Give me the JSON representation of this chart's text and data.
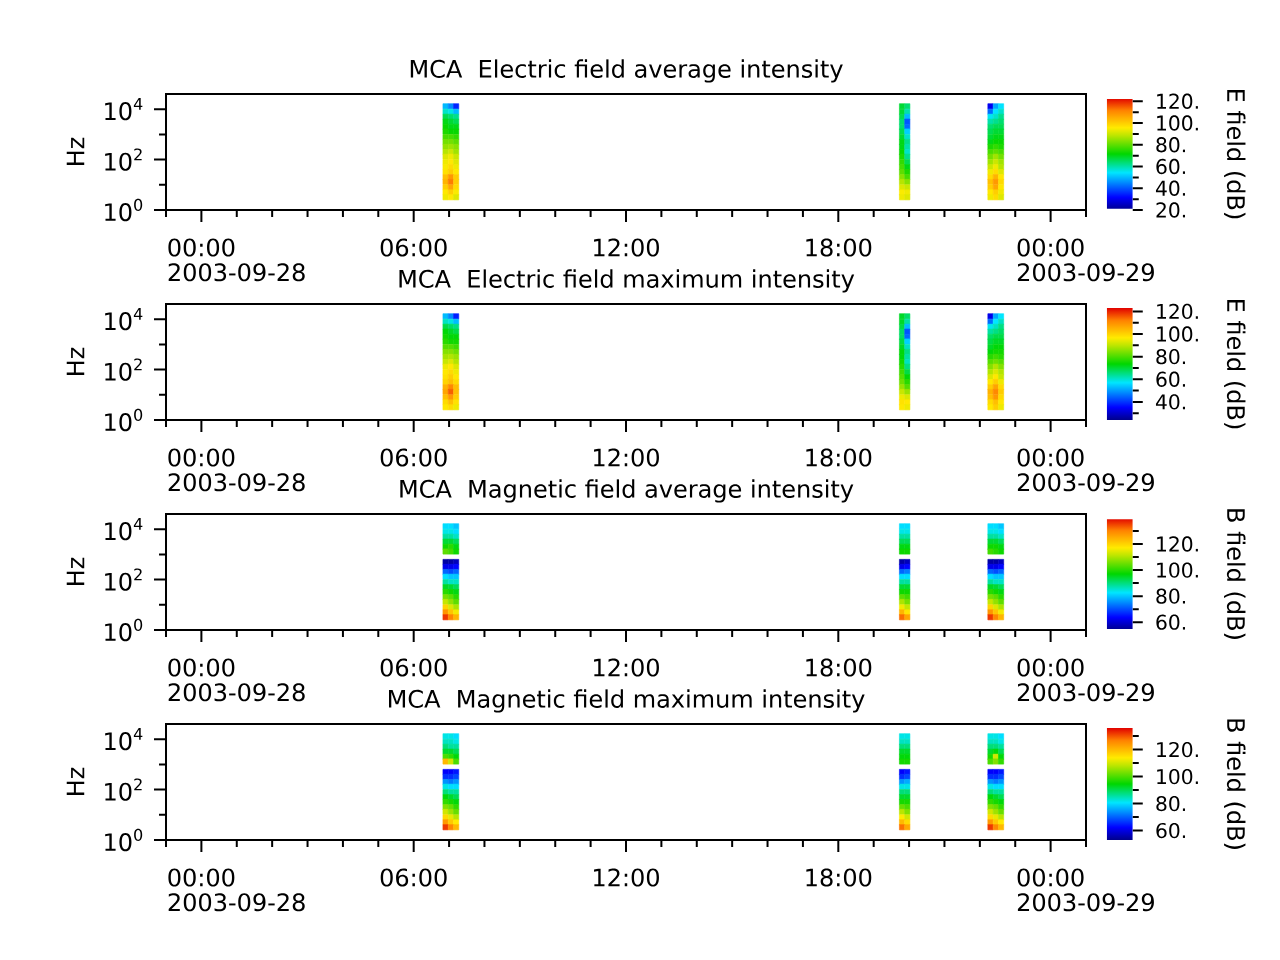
{
  "chart_data": [
    {
      "type": "scatter",
      "title": "MCA  Electric field average intensity",
      "ylabel": "Hz",
      "clabel": "E field (dB)",
      "marker": "square",
      "x": [
        6.9,
        7.05,
        7.2,
        19.8,
        19.95,
        22.3,
        22.45,
        22.6,
        6.9,
        7.05,
        7.2,
        19.8,
        19.95,
        22.3,
        22.45,
        22.6,
        6.9,
        7.05,
        7.2,
        19.8,
        19.95,
        22.3,
        22.45,
        22.6,
        6.9,
        7.05,
        7.2,
        19.8,
        19.95,
        22.3,
        22.45,
        22.6,
        6.9,
        7.05,
        7.2,
        19.8,
        19.95,
        22.3,
        22.45,
        22.6,
        6.9,
        7.05,
        7.2,
        19.8,
        19.95,
        22.3,
        22.45,
        22.6,
        6.9,
        7.05,
        7.2,
        19.8,
        19.95,
        22.3,
        22.45,
        22.6,
        6.9,
        7.05,
        7.2,
        19.8,
        19.95,
        22.3,
        22.45,
        22.6,
        6.9,
        7.05,
        7.2,
        19.8,
        19.95,
        22.3,
        22.45,
        22.6,
        6.9,
        7.05,
        7.2,
        19.8,
        19.95,
        22.3,
        22.45,
        22.6,
        6.9,
        7.05,
        7.2,
        19.8,
        19.95,
        22.3,
        22.45,
        22.6,
        6.9,
        7.05,
        7.2,
        19.8,
        19.95,
        22.3,
        22.45,
        22.6,
        6.9,
        7.05,
        7.2,
        19.8,
        19.95,
        22.3,
        22.45,
        22.6,
        6.9,
        7.05,
        7.2,
        19.8,
        19.95,
        22.3,
        22.45,
        22.6,
        6.9,
        7.05,
        7.2,
        19.8,
        19.95,
        22.3,
        22.45,
        22.6,
        6.9,
        7.05,
        7.2,
        19.8,
        19.95,
        22.3,
        22.45,
        22.6,
        6.9,
        7.05,
        7.2,
        19.8,
        19.95,
        22.3,
        22.45,
        22.6,
        6.9,
        7.05,
        7.2,
        19.8,
        19.95,
        22.3,
        22.45,
        22.6,
        6.9,
        7.05,
        7.2,
        19.8,
        19.95,
        22.3,
        22.45,
        22.6
      ],
      "values": [
        13000,
        13000,
        13000,
        13000,
        13000,
        13000,
        13000,
        13000,
        7900,
        7900,
        7900,
        7900,
        7900,
        7900,
        7900,
        7900,
        5000,
        5000,
        5000,
        5000,
        5000,
        5000,
        5000,
        5000,
        3200,
        3200,
        3200,
        3200,
        3200,
        3200,
        3200,
        3200,
        2000,
        2000,
        2000,
        2000,
        2000,
        2000,
        2000,
        2000,
        1300,
        1300,
        1300,
        1300,
        1300,
        1300,
        1300,
        1300,
        790,
        790,
        790,
        790,
        790,
        790,
        790,
        790,
        500,
        500,
        500,
        500,
        500,
        500,
        500,
        500,
        320,
        320,
        320,
        320,
        320,
        320,
        320,
        320,
        200,
        200,
        200,
        200,
        200,
        200,
        200,
        200,
        130,
        130,
        130,
        130,
        130,
        130,
        130,
        130,
        79,
        79,
        79,
        79,
        79,
        79,
        79,
        79,
        50,
        50,
        50,
        50,
        50,
        50,
        50,
        50,
        32,
        32,
        32,
        32,
        32,
        32,
        32,
        32,
        20,
        20,
        20,
        20,
        20,
        20,
        20,
        20,
        13,
        13,
        13,
        13,
        13,
        13,
        13,
        13,
        7.9,
        7.9,
        7.9,
        7.9,
        7.9,
        7.9,
        7.9,
        7.9,
        5,
        5,
        5,
        5,
        5,
        5,
        5,
        5,
        3.2,
        3.2,
        3.2,
        3.2,
        3.2,
        3.2,
        3.2,
        3.2
      ],
      "cvalues": [
        50,
        45,
        35,
        68,
        64,
        30,
        48,
        54,
        58,
        56,
        50,
        68,
        60,
        42,
        54,
        58,
        66,
        64,
        62,
        66,
        50,
        55,
        58,
        62,
        70,
        68,
        66,
        64,
        40,
        60,
        62,
        64,
        72,
        70,
        70,
        64,
        42,
        64,
        66,
        66,
        74,
        72,
        72,
        66,
        52,
        66,
        68,
        68,
        78,
        78,
        76,
        68,
        58,
        68,
        70,
        70,
        82,
        82,
        80,
        70,
        62,
        70,
        72,
        72,
        85,
        86,
        84,
        70,
        60,
        74,
        76,
        74,
        88,
        90,
        86,
        72,
        58,
        78,
        80,
        78,
        92,
        94,
        90,
        74,
        62,
        82,
        86,
        82,
        94,
        96,
        92,
        76,
        66,
        86,
        90,
        86,
        95,
        98,
        94,
        78,
        70,
        90,
        94,
        88,
        97,
        100,
        96,
        80,
        74,
        94,
        98,
        92,
        102,
        108,
        100,
        84,
        78,
        98,
        104,
        96,
        104,
        112,
        100,
        88,
        84,
        102,
        108,
        98,
        100,
        106,
        98,
        92,
        90,
        100,
        106,
        96,
        96,
        100,
        95,
        95,
        94,
        96,
        100,
        94,
        94,
        96,
        92,
        94,
        92,
        94,
        98,
        92
      ],
      "clim": [
        20,
        123
      ],
      "cticks": [
        {
          "value": 20,
          "label": "20."
        },
        {
          "value": 30,
          "label": null
        },
        {
          "value": 40,
          "label": "40."
        },
        {
          "value": 50,
          "label": null
        },
        {
          "value": 60,
          "label": "60."
        },
        {
          "value": 70,
          "label": null
        },
        {
          "value": 80,
          "label": "80."
        },
        {
          "value": 90,
          "label": null
        },
        {
          "value": 100,
          "label": "100."
        },
        {
          "value": 110,
          "label": null
        },
        {
          "value": 120,
          "label": "120."
        }
      ],
      "xlim": [
        -1,
        25
      ],
      "xticks": [
        {
          "value": -1,
          "label": null
        },
        {
          "value": 0,
          "label": "00:00"
        },
        {
          "value": 1,
          "label": null
        },
        {
          "value": 2,
          "label": null
        },
        {
          "value": 3,
          "label": null
        },
        {
          "value": 4,
          "label": null
        },
        {
          "value": 5,
          "label": null
        },
        {
          "value": 6,
          "label": "06:00"
        },
        {
          "value": 7,
          "label": null
        },
        {
          "value": 8,
          "label": null
        },
        {
          "value": 9,
          "label": null
        },
        {
          "value": 10,
          "label": null
        },
        {
          "value": 11,
          "label": null
        },
        {
          "value": 12,
          "label": "12:00"
        },
        {
          "value": 13,
          "label": null
        },
        {
          "value": 14,
          "label": null
        },
        {
          "value": 15,
          "label": null
        },
        {
          "value": 16,
          "label": null
        },
        {
          "value": 17,
          "label": null
        },
        {
          "value": 18,
          "label": "18:00"
        },
        {
          "value": 19,
          "label": null
        },
        {
          "value": 20,
          "label": null
        },
        {
          "value": 21,
          "label": null
        },
        {
          "value": 22,
          "label": null
        },
        {
          "value": 23,
          "label": null
        },
        {
          "value": 24,
          "label": "00:00"
        },
        {
          "value": 25,
          "label": null
        }
      ],
      "ylim": [
        1,
        40000
      ],
      "yticks": [
        {
          "value": 1,
          "label": "10$^{0}$"
        },
        {
          "value": 10,
          "label": null
        },
        {
          "value": 100,
          "label": "10$^{2}$"
        },
        {
          "value": 1000,
          "label": null
        },
        {
          "value": 10000,
          "label": "10$^{4}$"
        }
      ],
      "log": "y",
      "annotations": [
        "2003-09-28",
        "2003-09-29"
      ]
    },
    {
      "type": "scatter",
      "title": "MCA  Electric field maximum intensity",
      "ylabel": "Hz",
      "clabel": "E field (dB)",
      "marker": "square",
      "x": [
        6.9,
        7.05,
        7.2,
        19.8,
        19.95,
        22.3,
        22.45,
        22.6,
        6.9,
        7.05,
        7.2,
        19.8,
        19.95,
        22.3,
        22.45,
        22.6,
        6.9,
        7.05,
        7.2,
        19.8,
        19.95,
        22.3,
        22.45,
        22.6,
        6.9,
        7.05,
        7.2,
        19.8,
        19.95,
        22.3,
        22.45,
        22.6,
        6.9,
        7.05,
        7.2,
        19.8,
        19.95,
        22.3,
        22.45,
        22.6,
        6.9,
        7.05,
        7.2,
        19.8,
        19.95,
        22.3,
        22.45,
        22.6,
        6.9,
        7.05,
        7.2,
        19.8,
        19.95,
        22.3,
        22.45,
        22.6,
        6.9,
        7.05,
        7.2,
        19.8,
        19.95,
        22.3,
        22.45,
        22.6,
        6.9,
        7.05,
        7.2,
        19.8,
        19.95,
        22.3,
        22.45,
        22.6,
        6.9,
        7.05,
        7.2,
        19.8,
        19.95,
        22.3,
        22.45,
        22.6,
        6.9,
        7.05,
        7.2,
        19.8,
        19.95,
        22.3,
        22.45,
        22.6,
        6.9,
        7.05,
        7.2,
        19.8,
        19.95,
        22.3,
        22.45,
        22.6,
        6.9,
        7.05,
        7.2,
        19.8,
        19.95,
        22.3,
        22.45,
        22.6,
        6.9,
        7.05,
        7.2,
        19.8,
        19.95,
        22.3,
        22.45,
        22.6,
        6.9,
        7.05,
        7.2,
        19.8,
        19.95,
        22.3,
        22.45,
        22.6,
        6.9,
        7.05,
        7.2,
        19.8,
        19.95,
        22.3,
        22.45,
        22.6,
        6.9,
        7.05,
        7.2,
        19.8,
        19.95,
        22.3,
        22.45,
        22.6,
        6.9,
        7.05,
        7.2,
        19.8,
        19.95,
        22.3,
        22.45,
        22.6,
        6.9,
        7.05,
        7.2,
        19.8,
        19.95,
        22.3,
        22.45,
        22.6
      ],
      "values": [
        13000,
        13000,
        13000,
        13000,
        13000,
        13000,
        13000,
        13000,
        7900,
        7900,
        7900,
        7900,
        7900,
        7900,
        7900,
        7900,
        5000,
        5000,
        5000,
        5000,
        5000,
        5000,
        5000,
        5000,
        3200,
        3200,
        3200,
        3200,
        3200,
        3200,
        3200,
        3200,
        2000,
        2000,
        2000,
        2000,
        2000,
        2000,
        2000,
        2000,
        1300,
        1300,
        1300,
        1300,
        1300,
        1300,
        1300,
        1300,
        790,
        790,
        790,
        790,
        790,
        790,
        790,
        790,
        500,
        500,
        500,
        500,
        500,
        500,
        500,
        500,
        320,
        320,
        320,
        320,
        320,
        320,
        320,
        320,
        200,
        200,
        200,
        200,
        200,
        200,
        200,
        200,
        130,
        130,
        130,
        130,
        130,
        130,
        130,
        130,
        79,
        79,
        79,
        79,
        79,
        79,
        79,
        79,
        50,
        50,
        50,
        50,
        50,
        50,
        50,
        50,
        32,
        32,
        32,
        32,
        32,
        32,
        32,
        32,
        20,
        20,
        20,
        20,
        20,
        20,
        20,
        20,
        13,
        13,
        13,
        13,
        13,
        13,
        13,
        13,
        7.9,
        7.9,
        7.9,
        7.9,
        7.9,
        7.9,
        7.9,
        7.9,
        5,
        5,
        5,
        5,
        5,
        5,
        5,
        5,
        3.2,
        3.2,
        3.2,
        3.2,
        3.2,
        3.2,
        3.2,
        3.2
      ],
      "cvalues": [
        53,
        48,
        38,
        71,
        67,
        33,
        51,
        57,
        61,
        59,
        53,
        71,
        63,
        45,
        57,
        61,
        69,
        67,
        65,
        69,
        53,
        58,
        61,
        65,
        73,
        71,
        69,
        67,
        43,
        63,
        65,
        67,
        75,
        73,
        73,
        67,
        45,
        67,
        69,
        69,
        77,
        75,
        75,
        69,
        55,
        69,
        71,
        71,
        81,
        81,
        79,
        71,
        61,
        71,
        73,
        73,
        85,
        85,
        83,
        73,
        65,
        73,
        75,
        75,
        88,
        89,
        87,
        73,
        63,
        77,
        79,
        77,
        91,
        93,
        89,
        75,
        61,
        81,
        83,
        81,
        95,
        97,
        93,
        77,
        65,
        85,
        89,
        85,
        97,
        99,
        95,
        79,
        69,
        89,
        93,
        89,
        98,
        101,
        97,
        81,
        73,
        93,
        97,
        91,
        100,
        103,
        99,
        83,
        77,
        97,
        101,
        95,
        105,
        111,
        103,
        87,
        81,
        101,
        107,
        99,
        107,
        115,
        103,
        91,
        87,
        105,
        111,
        101,
        103,
        109,
        101,
        95,
        93,
        103,
        109,
        99,
        99,
        103,
        98,
        98,
        97,
        99,
        103,
        97,
        97,
        99,
        95,
        97,
        95,
        97,
        101,
        95
      ],
      "clim": [
        24,
        123
      ],
      "cticks": [
        {
          "value": 30,
          "label": null
        },
        {
          "value": 40,
          "label": "40."
        },
        {
          "value": 50,
          "label": null
        },
        {
          "value": 60,
          "label": "60."
        },
        {
          "value": 70,
          "label": null
        },
        {
          "value": 80,
          "label": "80."
        },
        {
          "value": 90,
          "label": null
        },
        {
          "value": 100,
          "label": "100."
        },
        {
          "value": 110,
          "label": null
        },
        {
          "value": 120,
          "label": "120."
        }
      ],
      "xlim": [
        -1,
        25
      ],
      "xticks": [
        {
          "value": -1,
          "label": null
        },
        {
          "value": 0,
          "label": "00:00"
        },
        {
          "value": 1,
          "label": null
        },
        {
          "value": 2,
          "label": null
        },
        {
          "value": 3,
          "label": null
        },
        {
          "value": 4,
          "label": null
        },
        {
          "value": 5,
          "label": null
        },
        {
          "value": 6,
          "label": "06:00"
        },
        {
          "value": 7,
          "label": null
        },
        {
          "value": 8,
          "label": null
        },
        {
          "value": 9,
          "label": null
        },
        {
          "value": 10,
          "label": null
        },
        {
          "value": 11,
          "label": null
        },
        {
          "value": 12,
          "label": "12:00"
        },
        {
          "value": 13,
          "label": null
        },
        {
          "value": 14,
          "label": null
        },
        {
          "value": 15,
          "label": null
        },
        {
          "value": 16,
          "label": null
        },
        {
          "value": 17,
          "label": null
        },
        {
          "value": 18,
          "label": "18:00"
        },
        {
          "value": 19,
          "label": null
        },
        {
          "value": 20,
          "label": null
        },
        {
          "value": 21,
          "label": null
        },
        {
          "value": 22,
          "label": null
        },
        {
          "value": 23,
          "label": null
        },
        {
          "value": 24,
          "label": "00:00"
        },
        {
          "value": 25,
          "label": null
        }
      ],
      "ylim": [
        1,
        40000
      ],
      "yticks": [
        {
          "value": 1,
          "label": "10$^{0}$"
        },
        {
          "value": 10,
          "label": null
        },
        {
          "value": 100,
          "label": "10$^{2}$"
        },
        {
          "value": 1000,
          "label": null
        },
        {
          "value": 10000,
          "label": "10$^{4}$"
        }
      ],
      "log": "y",
      "annotations": [
        "2003-09-28",
        "2003-09-29"
      ]
    },
    {
      "type": "scatter",
      "title": "MCA  Magnetic field average intensity",
      "ylabel": "Hz",
      "clabel": "B field (dB)",
      "marker": "square",
      "x": [
        6.9,
        7.05,
        7.2,
        19.8,
        19.95,
        22.3,
        22.45,
        22.6,
        6.9,
        7.05,
        7.2,
        19.8,
        19.95,
        22.3,
        22.45,
        22.6,
        6.9,
        7.05,
        7.2,
        19.8,
        19.95,
        22.3,
        22.45,
        22.6,
        6.9,
        7.05,
        7.2,
        19.8,
        19.95,
        22.3,
        22.45,
        22.6,
        6.9,
        7.05,
        7.2,
        19.8,
        19.95,
        22.3,
        22.45,
        22.6,
        6.9,
        7.05,
        7.2,
        19.8,
        19.95,
        22.3,
        22.45,
        22.6,
        6.9,
        7.05,
        7.2,
        19.8,
        19.95,
        22.3,
        22.45,
        22.6,
        6.9,
        7.05,
        7.2,
        19.8,
        19.95,
        22.3,
        22.45,
        22.6,
        6.9,
        7.05,
        7.2,
        19.8,
        19.95,
        22.3,
        22.45,
        22.6,
        6.9,
        7.05,
        7.2,
        19.8,
        19.95,
        22.3,
        22.45,
        22.6,
        6.9,
        7.05,
        7.2,
        19.8,
        19.95,
        22.3,
        22.45,
        22.6,
        6.9,
        7.05,
        7.2,
        19.8,
        19.95,
        22.3,
        22.45,
        22.6,
        6.9,
        7.05,
        7.2,
        19.8,
        19.95,
        22.3,
        22.45,
        22.6,
        6.9,
        7.05,
        7.2,
        19.8,
        19.95,
        22.3,
        22.45,
        22.6,
        6.9,
        7.05,
        7.2,
        19.8,
        19.95,
        22.3,
        22.45,
        22.6,
        6.9,
        7.05,
        7.2,
        19.8,
        19.95,
        22.3,
        22.45,
        22.6,
        6.9,
        7.05,
        7.2,
        19.8,
        19.95,
        22.3,
        22.45,
        22.6,
        6.9,
        7.05,
        7.2,
        19.8,
        19.95,
        22.3,
        22.45,
        22.6
      ],
      "values": [
        13000,
        13000,
        13000,
        13000,
        13000,
        13000,
        13000,
        13000,
        7900,
        7900,
        7900,
        7900,
        7900,
        7900,
        7900,
        7900,
        5000,
        5000,
        5000,
        5000,
        5000,
        5000,
        5000,
        5000,
        3200,
        3200,
        3200,
        3200,
        3200,
        3200,
        3200,
        3200,
        2000,
        2000,
        2000,
        2000,
        2000,
        2000,
        2000,
        2000,
        1300,
        1300,
        1300,
        1300,
        1300,
        1300,
        1300,
        1300,
        500,
        500,
        500,
        500,
        500,
        500,
        500,
        500,
        320,
        320,
        320,
        320,
        320,
        320,
        320,
        320,
        200,
        200,
        200,
        200,
        200,
        200,
        200,
        200,
        130,
        130,
        130,
        130,
        130,
        130,
        130,
        130,
        79,
        79,
        79,
        79,
        79,
        79,
        79,
        79,
        50,
        50,
        50,
        50,
        50,
        50,
        50,
        50,
        32,
        32,
        32,
        32,
        32,
        32,
        32,
        32,
        20,
        20,
        20,
        20,
        20,
        20,
        20,
        20,
        13,
        13,
        13,
        13,
        13,
        13,
        13,
        13,
        7.9,
        7.9,
        7.9,
        7.9,
        7.9,
        7.9,
        7.9,
        7.9,
        5,
        5,
        5,
        5,
        5,
        5,
        5,
        5,
        3.2,
        3.2,
        3.2,
        3.2,
        3.2,
        3.2,
        3.2,
        3.2
      ],
      "cvalues": [
        82,
        82,
        80,
        82,
        82,
        82,
        82,
        80,
        84,
        84,
        82,
        84,
        84,
        84,
        84,
        82,
        88,
        88,
        86,
        88,
        88,
        88,
        88,
        86,
        94,
        94,
        92,
        92,
        92,
        94,
        94,
        92,
        98,
        100,
        96,
        96,
        96,
        98,
        98,
        96,
        104,
        102,
        98,
        98,
        98,
        102,
        100,
        98,
        56,
        56,
        58,
        56,
        58,
        56,
        56,
        58,
        62,
        62,
        64,
        62,
        64,
        62,
        62,
        64,
        72,
        70,
        72,
        72,
        74,
        72,
        70,
        72,
        82,
        80,
        80,
        82,
        82,
        82,
        80,
        80,
        88,
        86,
        86,
        88,
        88,
        88,
        86,
        86,
        95,
        94,
        92,
        94,
        94,
        95,
        94,
        92,
        100,
        98,
        96,
        98,
        98,
        100,
        98,
        96,
        106,
        104,
        100,
        104,
        102,
        106,
        104,
        100,
        112,
        108,
        104,
        110,
        106,
        112,
        108,
        104,
        120,
        114,
        110,
        116,
        112,
        120,
        114,
        110,
        128,
        122,
        116,
        124,
        118,
        128,
        122,
        116,
        136,
        130,
        124,
        132,
        126,
        136,
        130,
        124
      ],
      "clim": [
        54,
        140
      ],
      "cticks": [
        {
          "value": 60,
          "label": "60."
        },
        {
          "value": 70,
          "label": null
        },
        {
          "value": 80,
          "label": "80."
        },
        {
          "value": 90,
          "label": null
        },
        {
          "value": 100,
          "label": "100."
        },
        {
          "value": 110,
          "label": null
        },
        {
          "value": 120,
          "label": "120."
        },
        {
          "value": 130,
          "label": null
        }
      ],
      "xlim": [
        -1,
        25
      ],
      "xticks": [
        {
          "value": -1,
          "label": null
        },
        {
          "value": 0,
          "label": "00:00"
        },
        {
          "value": 1,
          "label": null
        },
        {
          "value": 2,
          "label": null
        },
        {
          "value": 3,
          "label": null
        },
        {
          "value": 4,
          "label": null
        },
        {
          "value": 5,
          "label": null
        },
        {
          "value": 6,
          "label": "06:00"
        },
        {
          "value": 7,
          "label": null
        },
        {
          "value": 8,
          "label": null
        },
        {
          "value": 9,
          "label": null
        },
        {
          "value": 10,
          "label": null
        },
        {
          "value": 11,
          "label": null
        },
        {
          "value": 12,
          "label": "12:00"
        },
        {
          "value": 13,
          "label": null
        },
        {
          "value": 14,
          "label": null
        },
        {
          "value": 15,
          "label": null
        },
        {
          "value": 16,
          "label": null
        },
        {
          "value": 17,
          "label": null
        },
        {
          "value": 18,
          "label": "18:00"
        },
        {
          "value": 19,
          "label": null
        },
        {
          "value": 20,
          "label": null
        },
        {
          "value": 21,
          "label": null
        },
        {
          "value": 22,
          "label": null
        },
        {
          "value": 23,
          "label": null
        },
        {
          "value": 24,
          "label": "00:00"
        },
        {
          "value": 25,
          "label": null
        }
      ],
      "ylim": [
        1,
        40000
      ],
      "yticks": [
        {
          "value": 1,
          "label": "10$^{0}$"
        },
        {
          "value": 10,
          "label": null
        },
        {
          "value": 100,
          "label": "10$^{2}$"
        },
        {
          "value": 1000,
          "label": null
        },
        {
          "value": 10000,
          "label": "10$^{4}$"
        }
      ],
      "log": "y",
      "annotations": [
        "2003-09-28",
        "2003-09-29"
      ]
    },
    {
      "type": "scatter",
      "title": "MCA  Magnetic field maximum intensity",
      "ylabel": "Hz",
      "clabel": "B field (dB)",
      "marker": "square",
      "x": [
        6.9,
        7.05,
        7.2,
        19.8,
        19.95,
        22.3,
        22.45,
        22.6,
        6.9,
        7.05,
        7.2,
        19.8,
        19.95,
        22.3,
        22.45,
        22.6,
        6.9,
        7.05,
        7.2,
        19.8,
        19.95,
        22.3,
        22.45,
        22.6,
        6.9,
        7.05,
        7.2,
        19.8,
        19.95,
        22.3,
        22.45,
        22.6,
        6.9,
        7.05,
        7.2,
        19.8,
        19.95,
        22.3,
        22.45,
        22.6,
        6.9,
        7.05,
        7.2,
        19.8,
        19.95,
        22.3,
        22.45,
        22.6,
        6.9,
        7.05,
        7.2,
        19.8,
        19.95,
        22.3,
        22.45,
        22.6,
        6.9,
        7.05,
        7.2,
        19.8,
        19.95,
        22.3,
        22.45,
        22.6,
        6.9,
        7.05,
        7.2,
        19.8,
        19.95,
        22.3,
        22.45,
        22.6,
        6.9,
        7.05,
        7.2,
        19.8,
        19.95,
        22.3,
        22.45,
        22.6,
        6.9,
        7.05,
        7.2,
        19.8,
        19.95,
        22.3,
        22.45,
        22.6,
        6.9,
        7.05,
        7.2,
        19.8,
        19.95,
        22.3,
        22.45,
        22.6,
        6.9,
        7.05,
        7.2,
        19.8,
        19.95,
        22.3,
        22.45,
        22.6,
        6.9,
        7.05,
        7.2,
        19.8,
        19.95,
        22.3,
        22.45,
        22.6,
        6.9,
        7.05,
        7.2,
        19.8,
        19.95,
        22.3,
        22.45,
        22.6,
        6.9,
        7.05,
        7.2,
        19.8,
        19.95,
        22.3,
        22.45,
        22.6,
        6.9,
        7.05,
        7.2,
        19.8,
        19.95,
        22.3,
        22.45,
        22.6,
        6.9,
        7.05,
        7.2,
        19.8,
        19.95,
        22.3,
        22.45,
        22.6
      ],
      "values": [
        13000,
        13000,
        13000,
        13000,
        13000,
        13000,
        13000,
        13000,
        7900,
        7900,
        7900,
        7900,
        7900,
        7900,
        7900,
        7900,
        5000,
        5000,
        5000,
        5000,
        5000,
        5000,
        5000,
        5000,
        3200,
        3200,
        3200,
        3200,
        3200,
        3200,
        3200,
        3200,
        2000,
        2000,
        2000,
        2000,
        2000,
        2000,
        2000,
        2000,
        1300,
        1300,
        1300,
        1300,
        1300,
        1300,
        1300,
        1300,
        500,
        500,
        500,
        500,
        500,
        500,
        500,
        500,
        320,
        320,
        320,
        320,
        320,
        320,
        320,
        320,
        200,
        200,
        200,
        200,
        200,
        200,
        200,
        200,
        130,
        130,
        130,
        130,
        130,
        130,
        130,
        130,
        79,
        79,
        79,
        79,
        79,
        79,
        79,
        79,
        50,
        50,
        50,
        50,
        50,
        50,
        50,
        50,
        32,
        32,
        32,
        32,
        32,
        32,
        32,
        32,
        20,
        20,
        20,
        20,
        20,
        20,
        20,
        20,
        13,
        13,
        13,
        13,
        13,
        13,
        13,
        13,
        7.9,
        7.9,
        7.9,
        7.9,
        7.9,
        7.9,
        7.9,
        7.9,
        5,
        5,
        5,
        5,
        5,
        5,
        5,
        5,
        3.2,
        3.2,
        3.2,
        3.2,
        3.2,
        3.2,
        3.2,
        3.2
      ],
      "cvalues": [
        82,
        82,
        80,
        82,
        82,
        82,
        82,
        80,
        84,
        84,
        82,
        84,
        84,
        84,
        84,
        82,
        88,
        86,
        86,
        88,
        88,
        88,
        88,
        86,
        92,
        92,
        90,
        92,
        92,
        92,
        94,
        90,
        100,
        98,
        94,
        94,
        94,
        96,
        110,
        94,
        120,
        110,
        100,
        96,
        96,
        100,
        104,
        98,
        62,
        62,
        64,
        62,
        64,
        62,
        62,
        64,
        66,
        66,
        68,
        66,
        68,
        66,
        66,
        68,
        74,
        72,
        74,
        74,
        76,
        74,
        72,
        74,
        82,
        80,
        80,
        82,
        82,
        82,
        80,
        80,
        88,
        86,
        86,
        88,
        88,
        88,
        86,
        86,
        94,
        92,
        90,
        92,
        92,
        94,
        92,
        90,
        98,
        96,
        94,
        96,
        96,
        98,
        96,
        94,
        104,
        102,
        98,
        102,
        100,
        104,
        102,
        98,
        110,
        106,
        102,
        108,
        104,
        110,
        106,
        102,
        116,
        112,
        108,
        114,
        110,
        116,
        112,
        108,
        124,
        118,
        114,
        120,
        116,
        124,
        118,
        114,
        132,
        126,
        120,
        128,
        122,
        132,
        126,
        120
      ],
      "clim": [
        53,
        136
      ],
      "cticks": [
        {
          "value": 60,
          "label": "60."
        },
        {
          "value": 70,
          "label": null
        },
        {
          "value": 80,
          "label": "80."
        },
        {
          "value": 90,
          "label": null
        },
        {
          "value": 100,
          "label": "100."
        },
        {
          "value": 110,
          "label": null
        },
        {
          "value": 120,
          "label": "120."
        },
        {
          "value": 130,
          "label": null
        }
      ],
      "xlim": [
        -1,
        25
      ],
      "xticks": [
        {
          "value": -1,
          "label": null
        },
        {
          "value": 0,
          "label": "00:00"
        },
        {
          "value": 1,
          "label": null
        },
        {
          "value": 2,
          "label": null
        },
        {
          "value": 3,
          "label": null
        },
        {
          "value": 4,
          "label": null
        },
        {
          "value": 5,
          "label": null
        },
        {
          "value": 6,
          "label": "06:00"
        },
        {
          "value": 7,
          "label": null
        },
        {
          "value": 8,
          "label": null
        },
        {
          "value": 9,
          "label": null
        },
        {
          "value": 10,
          "label": null
        },
        {
          "value": 11,
          "label": null
        },
        {
          "value": 12,
          "label": "12:00"
        },
        {
          "value": 13,
          "label": null
        },
        {
          "value": 14,
          "label": null
        },
        {
          "value": 15,
          "label": null
        },
        {
          "value": 16,
          "label": null
        },
        {
          "value": 17,
          "label": null
        },
        {
          "value": 18,
          "label": "18:00"
        },
        {
          "value": 19,
          "label": null
        },
        {
          "value": 20,
          "label": null
        },
        {
          "value": 21,
          "label": null
        },
        {
          "value": 22,
          "label": null
        },
        {
          "value": 23,
          "label": null
        },
        {
          "value": 24,
          "label": "00:00"
        },
        {
          "value": 25,
          "label": null
        }
      ],
      "ylim": [
        1,
        40000
      ],
      "yticks": [
        {
          "value": 1,
          "label": "10$^{0}$"
        },
        {
          "value": 10,
          "label": null
        },
        {
          "value": 100,
          "label": "10$^{2}$"
        },
        {
          "value": 1000,
          "label": null
        },
        {
          "value": 10000,
          "label": "10$^{4}$"
        }
      ],
      "log": "y",
      "annotations": [
        "2003-09-28",
        "2003-09-29"
      ]
    }
  ]
}
